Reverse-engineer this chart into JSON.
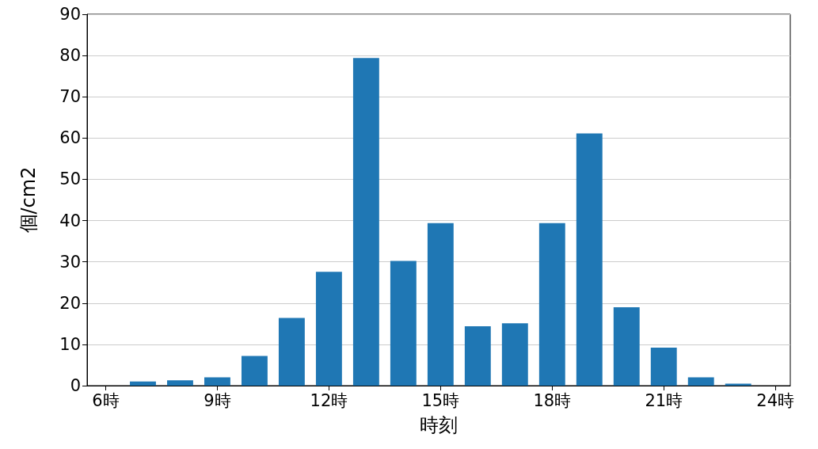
{
  "chart_data": {
    "type": "bar",
    "xlabel": "時刻",
    "ylabel": "個/cm2",
    "x": [
      7,
      8,
      9,
      10,
      11,
      12,
      13,
      14,
      15,
      16,
      17,
      18,
      19,
      20,
      21,
      22,
      23
    ],
    "values": [
      1,
      1.3,
      2,
      7.2,
      16.4,
      27.6,
      79.4,
      30.2,
      39.4,
      14.4,
      15.1,
      39.4,
      61.1,
      19,
      9.2,
      2,
      0.5
    ],
    "color": "#1f77b4",
    "xlim": [
      5.5,
      24.4
    ],
    "xticks": [
      {
        "value": 6,
        "label": "6時"
      },
      {
        "value": 9,
        "label": "9時"
      },
      {
        "value": 12,
        "label": "12時"
      },
      {
        "value": 15,
        "label": "15時"
      },
      {
        "value": 18,
        "label": "18時"
      },
      {
        "value": 21,
        "label": "21時"
      },
      {
        "value": 24,
        "label": "24時"
      }
    ],
    "ylim": [
      0,
      90
    ],
    "yticks": [
      0,
      10,
      20,
      30,
      40,
      50,
      60,
      70,
      80,
      90
    ],
    "grid": "y"
  }
}
